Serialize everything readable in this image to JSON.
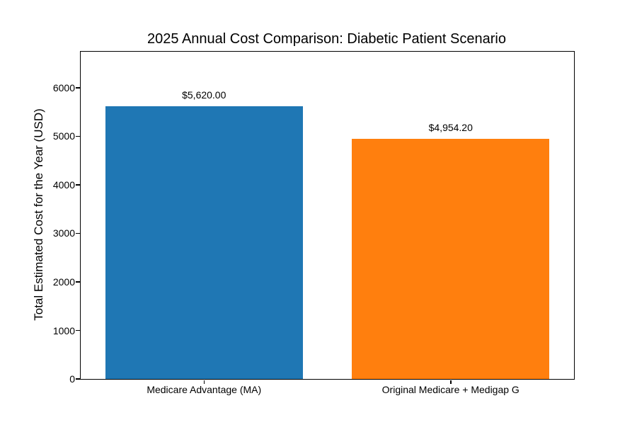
{
  "chart_data": {
    "type": "bar",
    "title": "2025 Annual Cost Comparison: Diabetic Patient Scenario",
    "xlabel": "",
    "ylabel": "Total Estimated Cost for the Year (USD)",
    "categories": [
      "Medicare Advantage (MA)",
      "Original Medicare + Medigap G"
    ],
    "values": [
      5620.0,
      4954.2
    ],
    "bar_value_labels": [
      "$5,620.00",
      "$4,954.20"
    ],
    "bar_colors": [
      "#1f77b4",
      "#ff7f0e"
    ],
    "bar_width_fraction": 0.8,
    "ylim": [
      0,
      6744
    ],
    "yticks": [
      0,
      1000,
      2000,
      3000,
      4000,
      5000,
      6000
    ],
    "grid": false,
    "legend": "none",
    "background_color": "#ffffff",
    "spine_color": "#000000"
  }
}
